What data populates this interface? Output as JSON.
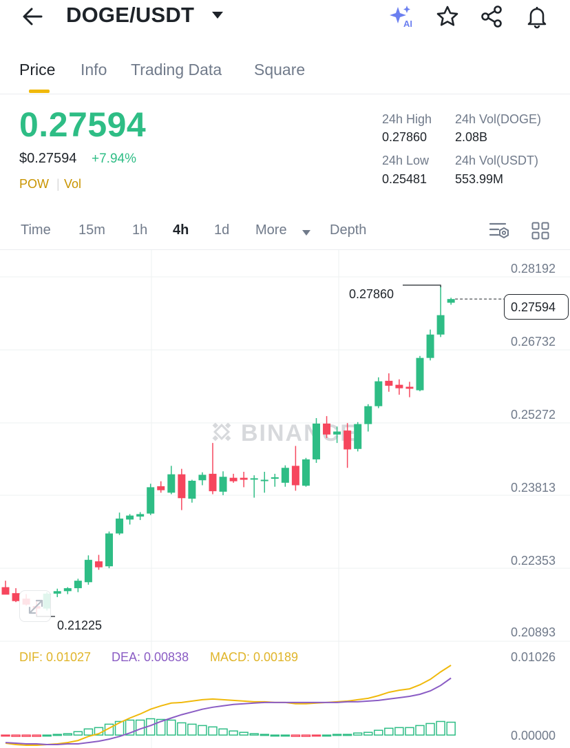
{
  "header": {
    "pair": "DOGE/USDT",
    "ai_badge": "AI",
    "icons": [
      "back-arrow-icon",
      "caret-down-icon",
      "ai-sparkle-icon",
      "star-icon",
      "share-icon",
      "bell-icon"
    ]
  },
  "tabs": [
    {
      "label": "Price",
      "active": true
    },
    {
      "label": "Info",
      "active": false
    },
    {
      "label": "Trading Data",
      "active": false
    },
    {
      "label": "Square",
      "active": false
    }
  ],
  "price": {
    "last": "0.27594",
    "usd": "$0.27594",
    "change": "+7.94%",
    "tag1": "POW",
    "tag2": "Vol"
  },
  "stats": {
    "high_label": "24h High",
    "high_value": "0.27860",
    "low_label": "24h Low",
    "low_value": "0.25481",
    "vol_base_label": "24h Vol(DOGE)",
    "vol_base_value": "2.08B",
    "vol_quote_label": "24h Vol(USDT)",
    "vol_quote_value": "553.99M"
  },
  "intervals": [
    {
      "label": "Time",
      "active": false
    },
    {
      "label": "15m",
      "active": false
    },
    {
      "label": "1h",
      "active": false
    },
    {
      "label": "4h",
      "active": true
    },
    {
      "label": "1d",
      "active": false
    },
    {
      "label": "More",
      "active": false
    },
    {
      "label": "Depth",
      "active": false
    }
  ],
  "chart": {
    "y_axis_labels": [
      "0.28192",
      "0.26732",
      "0.25272",
      "0.23813",
      "0.22353",
      "0.20893"
    ],
    "current_price_tag": "0.27594",
    "high_marker": "0.27860",
    "low_marker": "0.21225",
    "watermark": "BINANCE"
  },
  "macd": {
    "dif": "DIF: 0.01027",
    "dea": "DEA: 0.00838",
    "macd": "MACD: 0.00189",
    "axis_top": "0.01026",
    "axis_bottom": "0.00000"
  },
  "colors": {
    "up": "#2ebd85",
    "down": "#f6465d",
    "accent": "#f0b90b",
    "dif_line": "#f0b90b",
    "dea_line": "#8a5cc4"
  },
  "chart_data": {
    "type": "candlestick",
    "interval": "4h",
    "ylim": [
      0.20893,
      0.28192
    ],
    "y_ticks": [
      0.28192,
      0.26732,
      0.25272,
      0.23813,
      0.22353,
      0.20893
    ],
    "high": 0.2786,
    "low": 0.21225,
    "last": 0.27594,
    "candles": [
      {
        "o": 0.218,
        "h": 0.2193,
        "l": 0.2167,
        "c": 0.2165
      },
      {
        "o": 0.2168,
        "h": 0.2178,
        "l": 0.215,
        "c": 0.2152
      },
      {
        "o": 0.2157,
        "h": 0.2166,
        "l": 0.2143,
        "c": 0.2145
      },
      {
        "o": 0.2142,
        "h": 0.2152,
        "l": 0.21225,
        "c": 0.2137
      },
      {
        "o": 0.2137,
        "h": 0.217,
        "l": 0.2133,
        "c": 0.2167
      },
      {
        "o": 0.2167,
        "h": 0.2177,
        "l": 0.216,
        "c": 0.2172
      },
      {
        "o": 0.2172,
        "h": 0.218,
        "l": 0.2166,
        "c": 0.2178
      },
      {
        "o": 0.2178,
        "h": 0.2197,
        "l": 0.217,
        "c": 0.2193
      },
      {
        "o": 0.219,
        "h": 0.2244,
        "l": 0.2185,
        "c": 0.2235
      },
      {
        "o": 0.2232,
        "h": 0.2245,
        "l": 0.2215,
        "c": 0.222
      },
      {
        "o": 0.2222,
        "h": 0.2292,
        "l": 0.2218,
        "c": 0.2288
      },
      {
        "o": 0.2288,
        "h": 0.233,
        "l": 0.2285,
        "c": 0.2318
      },
      {
        "o": 0.2316,
        "h": 0.2327,
        "l": 0.2306,
        "c": 0.2324
      },
      {
        "o": 0.2322,
        "h": 0.2331,
        "l": 0.2315,
        "c": 0.2327
      },
      {
        "o": 0.2328,
        "h": 0.2388,
        "l": 0.2325,
        "c": 0.2381
      },
      {
        "o": 0.2383,
        "h": 0.2393,
        "l": 0.237,
        "c": 0.2375
      },
      {
        "o": 0.237,
        "h": 0.2424,
        "l": 0.2367,
        "c": 0.2407
      },
      {
        "o": 0.2407,
        "h": 0.2418,
        "l": 0.2335,
        "c": 0.2359
      },
      {
        "o": 0.2358,
        "h": 0.2396,
        "l": 0.235,
        "c": 0.2394
      },
      {
        "o": 0.2395,
        "h": 0.2411,
        "l": 0.2385,
        "c": 0.2406
      },
      {
        "o": 0.2408,
        "h": 0.247,
        "l": 0.2367,
        "c": 0.2373
      },
      {
        "o": 0.2372,
        "h": 0.2413,
        "l": 0.2365,
        "c": 0.2402
      },
      {
        "o": 0.24,
        "h": 0.2408,
        "l": 0.239,
        "c": 0.2393
      },
      {
        "o": 0.24,
        "h": 0.2412,
        "l": 0.2381,
        "c": 0.2396
      },
      {
        "o": 0.2398,
        "h": 0.2405,
        "l": 0.236,
        "c": 0.2399
      },
      {
        "o": 0.2395,
        "h": 0.2412,
        "l": 0.237,
        "c": 0.2396
      },
      {
        "o": 0.2398,
        "h": 0.2408,
        "l": 0.2382,
        "c": 0.2401
      },
      {
        "o": 0.239,
        "h": 0.2425,
        "l": 0.2382,
        "c": 0.242
      },
      {
        "o": 0.2424,
        "h": 0.2464,
        "l": 0.2374,
        "c": 0.2385
      },
      {
        "o": 0.2384,
        "h": 0.244,
        "l": 0.2382,
        "c": 0.2437
      },
      {
        "o": 0.2437,
        "h": 0.252,
        "l": 0.243,
        "c": 0.2509
      },
      {
        "o": 0.2509,
        "h": 0.2524,
        "l": 0.248,
        "c": 0.2487
      },
      {
        "o": 0.2487,
        "h": 0.2503,
        "l": 0.247,
        "c": 0.2493
      },
      {
        "o": 0.2495,
        "h": 0.251,
        "l": 0.242,
        "c": 0.2457
      },
      {
        "o": 0.2458,
        "h": 0.2512,
        "l": 0.2453,
        "c": 0.2508
      },
      {
        "o": 0.2508,
        "h": 0.2548,
        "l": 0.2493,
        "c": 0.2544
      },
      {
        "o": 0.2544,
        "h": 0.2602,
        "l": 0.254,
        "c": 0.2594
      },
      {
        "o": 0.2595,
        "h": 0.261,
        "l": 0.2573,
        "c": 0.2585
      },
      {
        "o": 0.2587,
        "h": 0.2598,
        "l": 0.2567,
        "c": 0.258
      },
      {
        "o": 0.2583,
        "h": 0.2593,
        "l": 0.2562,
        "c": 0.2579
      },
      {
        "o": 0.2576,
        "h": 0.2645,
        "l": 0.2574,
        "c": 0.2641
      },
      {
        "o": 0.2641,
        "h": 0.2698,
        "l": 0.2636,
        "c": 0.2688
      },
      {
        "o": 0.2688,
        "h": 0.2786,
        "l": 0.2683,
        "c": 0.2727
      },
      {
        "o": 0.2752,
        "h": 0.2762,
        "l": 0.2748,
        "c": 0.27594
      }
    ],
    "macd_ylim": [
      -0.0015,
      0.01026
    ],
    "dif": [
      -0.0012,
      -0.0014,
      -0.0015,
      -0.0015,
      -0.0014,
      -0.0013,
      -0.0011,
      -0.0008,
      -0.0002,
      0.0002,
      0.001,
      0.0018,
      0.0025,
      0.0031,
      0.0038,
      0.0043,
      0.0047,
      0.0048,
      0.005,
      0.0052,
      0.0053,
      0.0052,
      0.0051,
      0.005,
      0.0049,
      0.0049,
      0.0048,
      0.0048,
      0.0046,
      0.0046,
      0.0047,
      0.0048,
      0.0049,
      0.005,
      0.0052,
      0.0054,
      0.0058,
      0.0063,
      0.0066,
      0.0068,
      0.0074,
      0.0082,
      0.0093,
      0.01027
    ],
    "dea": [
      -0.0011,
      -0.0012,
      -0.0013,
      -0.0013,
      -0.0014,
      -0.0014,
      -0.0013,
      -0.0013,
      -0.0011,
      -0.0009,
      -0.0006,
      -0.0002,
      0.0003,
      0.0009,
      0.0014,
      0.002,
      0.0025,
      0.003,
      0.0034,
      0.0038,
      0.0041,
      0.0043,
      0.0045,
      0.0046,
      0.0047,
      0.0048,
      0.0048,
      0.0048,
      0.0048,
      0.0048,
      0.0048,
      0.0048,
      0.0048,
      0.0049,
      0.0049,
      0.005,
      0.0051,
      0.0053,
      0.0055,
      0.0057,
      0.006,
      0.0065,
      0.0073,
      0.00838
    ]
  }
}
